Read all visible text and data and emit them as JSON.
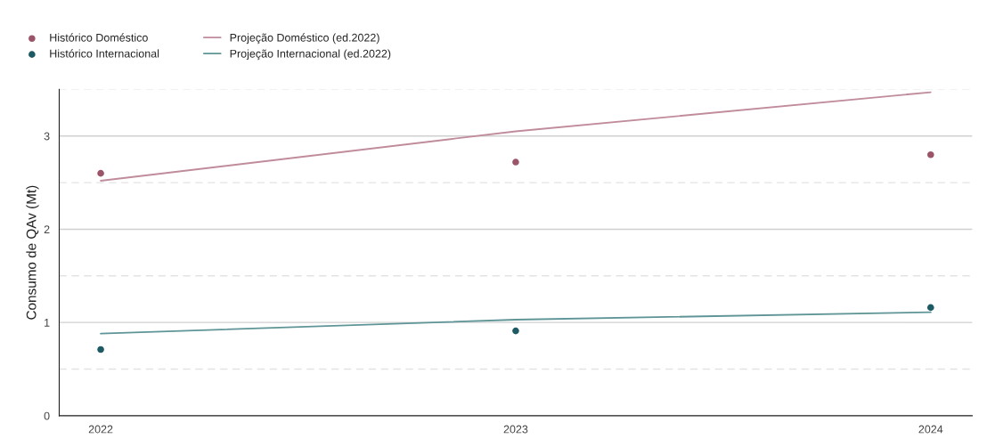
{
  "chart_data": {
    "type": "scatter",
    "ylabel": "Consumo de QAv (Mt)",
    "x": [
      2022,
      2023,
      2024
    ],
    "series": [
      {
        "name": "Histórico Doméstico",
        "marker": "circle",
        "color": "#9b5468",
        "values": [
          2.6,
          2.72,
          2.8
        ]
      },
      {
        "name": "Histórico Internacional",
        "marker": "circle",
        "color": "#1d5a63",
        "values": [
          0.71,
          0.91,
          1.16
        ]
      },
      {
        "name": "Projeção Doméstico (ed.2022)",
        "type": "line",
        "marker": "none",
        "color": "#c08c9b",
        "values": [
          2.52,
          3.05,
          3.47
        ]
      },
      {
        "name": "Projeção Internacional (ed.2022)",
        "type": "line",
        "marker": "none",
        "color": "#5f9597",
        "values": [
          0.88,
          1.03,
          1.11
        ]
      }
    ],
    "xlim": [
      2021.9,
      2024.1
    ],
    "xticks": [
      2022,
      2023,
      2024
    ],
    "ylim": [
      0,
      3.5
    ],
    "yticks": [
      0,
      {
        "value": 0.5,
        "label": null
      },
      1,
      {
        "value": 1.5,
        "label": null
      },
      2,
      {
        "value": 2.5,
        "label": null
      },
      3,
      {
        "value": 3.5,
        "label": null
      }
    ],
    "grid": "y",
    "legend": "top left",
    "line_style": "solid"
  }
}
